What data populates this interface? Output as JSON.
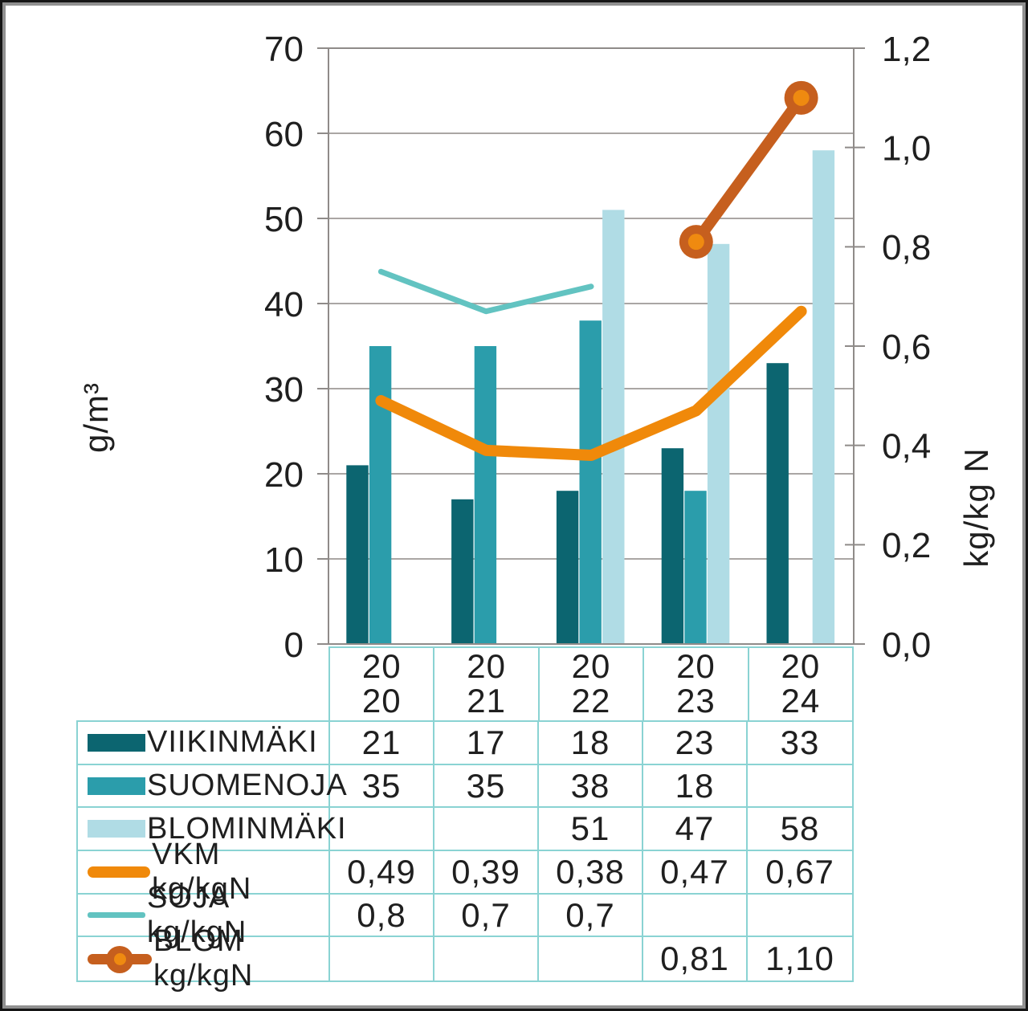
{
  "colors": {
    "viikinmaki": "#0c6570",
    "suomenoja": "#2b9dab",
    "blominmaki": "#b0dce5",
    "vkm_line": "#f0890a",
    "soja_line": "#62c3c1",
    "blom_line": "#c65f1e",
    "blom_marker_fill": "#ef8a10",
    "gridline": "#aaa6a4",
    "axis": "#8f8b89",
    "table_border": "#8ad3d3",
    "text": "#1f1f1f",
    "frame_outer": "#151515",
    "frame_inner": "#909090"
  },
  "chart_data": {
    "type": "bar",
    "title": "",
    "categories": [
      "2020",
      "2021",
      "2022",
      "2023",
      "2024"
    ],
    "category_tick_lines": [
      [
        "20",
        "20"
      ],
      [
        "20",
        "21"
      ],
      [
        "20",
        "22"
      ],
      [
        "20",
        "23"
      ],
      [
        "20",
        "24"
      ]
    ],
    "left_axis": {
      "label": "g/m³",
      "min": 0,
      "max": 70,
      "tick_values": [
        70,
        60,
        50,
        40,
        30,
        20,
        10,
        0
      ],
      "tick_labels": [
        "70",
        "60",
        "50",
        "40",
        "30",
        "20",
        "10",
        "0"
      ]
    },
    "right_axis": {
      "label": "kg/kg N",
      "min": 0,
      "max": 1.2,
      "tick_values": [
        1.2,
        1.0,
        0.8,
        0.6,
        0.4,
        0.2,
        0
      ],
      "tick_labels": [
        "1,2",
        "1,0",
        "0,8",
        "0,6",
        "0,4",
        "0,2",
        "0,0"
      ]
    },
    "grid": "horizontal-only",
    "legend_position": "table-left-column",
    "series": [
      {
        "name": "VIIKINMÄKI",
        "kind": "bar",
        "axis": "left",
        "color": "#0c6570",
        "values": [
          21,
          17,
          18,
          23,
          33
        ],
        "table_values": [
          "21",
          "17",
          "18",
          "23",
          "33"
        ]
      },
      {
        "name": "SUOMENOJA",
        "kind": "bar",
        "axis": "left",
        "color": "#2b9dab",
        "values": [
          35,
          35,
          38,
          18,
          null
        ],
        "table_values": [
          "35",
          "35",
          "38",
          "18",
          ""
        ]
      },
      {
        "name": "BLOMINMÄKI",
        "kind": "bar",
        "axis": "left",
        "color": "#b0dce5",
        "values": [
          null,
          null,
          51,
          47,
          58
        ],
        "table_values": [
          "",
          "",
          "51",
          "47",
          "58"
        ]
      },
      {
        "name": "VKM kg/kgN",
        "kind": "line",
        "axis": "right",
        "color": "#f0890a",
        "stroke_width": 14,
        "values": [
          0.49,
          0.39,
          0.38,
          0.47,
          0.67
        ],
        "table_values": [
          "0,49",
          "0,39",
          "0,38",
          "0,47",
          "0,67"
        ]
      },
      {
        "name": "SOJA kg/kgN",
        "kind": "line",
        "axis": "right",
        "color": "#62c3c1",
        "stroke_width": 7,
        "values": [
          0.75,
          0.67,
          0.72,
          null,
          null
        ],
        "table_values": [
          "0,8",
          "0,7",
          "0,7",
          "",
          ""
        ]
      },
      {
        "name": "BLOM kg/kgN",
        "kind": "line-marker",
        "axis": "right",
        "color": "#c65f1e",
        "marker_fill": "#ef8a10",
        "stroke_width": 14,
        "values": [
          null,
          null,
          null,
          0.81,
          1.1
        ],
        "table_values": [
          "",
          "",
          "",
          "0,81",
          "1,10"
        ]
      }
    ]
  }
}
